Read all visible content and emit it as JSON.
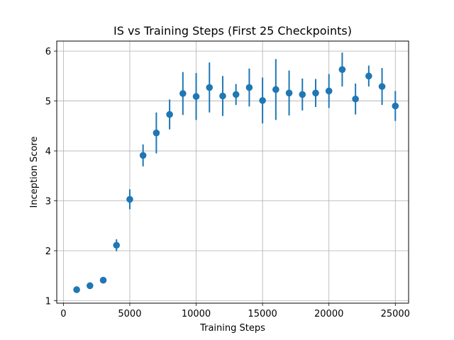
{
  "chart_data": {
    "type": "scatter",
    "title": "IS vs Training Steps (First 25 Checkpoints)",
    "xlabel": "Training Steps",
    "ylabel": "Inception Score",
    "xlim": [
      -500,
      26000
    ],
    "ylim": [
      0.95,
      6.2
    ],
    "xticks": [
      0,
      5000,
      10000,
      15000,
      20000,
      25000
    ],
    "yticks": [
      1,
      2,
      3,
      4,
      5,
      6
    ],
    "grid": true,
    "color": "#1f77b4",
    "points": [
      {
        "x": 1000,
        "y": 1.22,
        "err": 0.03
      },
      {
        "x": 2000,
        "y": 1.3,
        "err": 0.03
      },
      {
        "x": 3000,
        "y": 1.41,
        "err": 0.03
      },
      {
        "x": 4000,
        "y": 2.11,
        "err": 0.12
      },
      {
        "x": 5000,
        "y": 3.03,
        "err": 0.2
      },
      {
        "x": 6000,
        "y": 3.91,
        "err": 0.22
      },
      {
        "x": 7000,
        "y": 4.36,
        "err": 0.41
      },
      {
        "x": 8000,
        "y": 4.73,
        "err": 0.3
      },
      {
        "x": 9000,
        "y": 5.15,
        "err": 0.43
      },
      {
        "x": 10000,
        "y": 5.09,
        "err": 0.47
      },
      {
        "x": 11000,
        "y": 5.27,
        "err": 0.5
      },
      {
        "x": 12000,
        "y": 5.1,
        "err": 0.4
      },
      {
        "x": 13000,
        "y": 5.13,
        "err": 0.21
      },
      {
        "x": 14000,
        "y": 5.27,
        "err": 0.38
      },
      {
        "x": 15000,
        "y": 5.01,
        "err": 0.46
      },
      {
        "x": 16000,
        "y": 5.23,
        "err": 0.61
      },
      {
        "x": 17000,
        "y": 5.16,
        "err": 0.45
      },
      {
        "x": 18000,
        "y": 5.13,
        "err": 0.32
      },
      {
        "x": 19000,
        "y": 5.16,
        "err": 0.28
      },
      {
        "x": 20000,
        "y": 5.2,
        "err": 0.34
      },
      {
        "x": 21000,
        "y": 5.63,
        "err": 0.34
      },
      {
        "x": 22000,
        "y": 5.04,
        "err": 0.31
      },
      {
        "x": 23000,
        "y": 5.5,
        "err": 0.21
      },
      {
        "x": 24000,
        "y": 5.29,
        "err": 0.37
      },
      {
        "x": 25000,
        "y": 4.9,
        "err": 0.3
      }
    ]
  }
}
